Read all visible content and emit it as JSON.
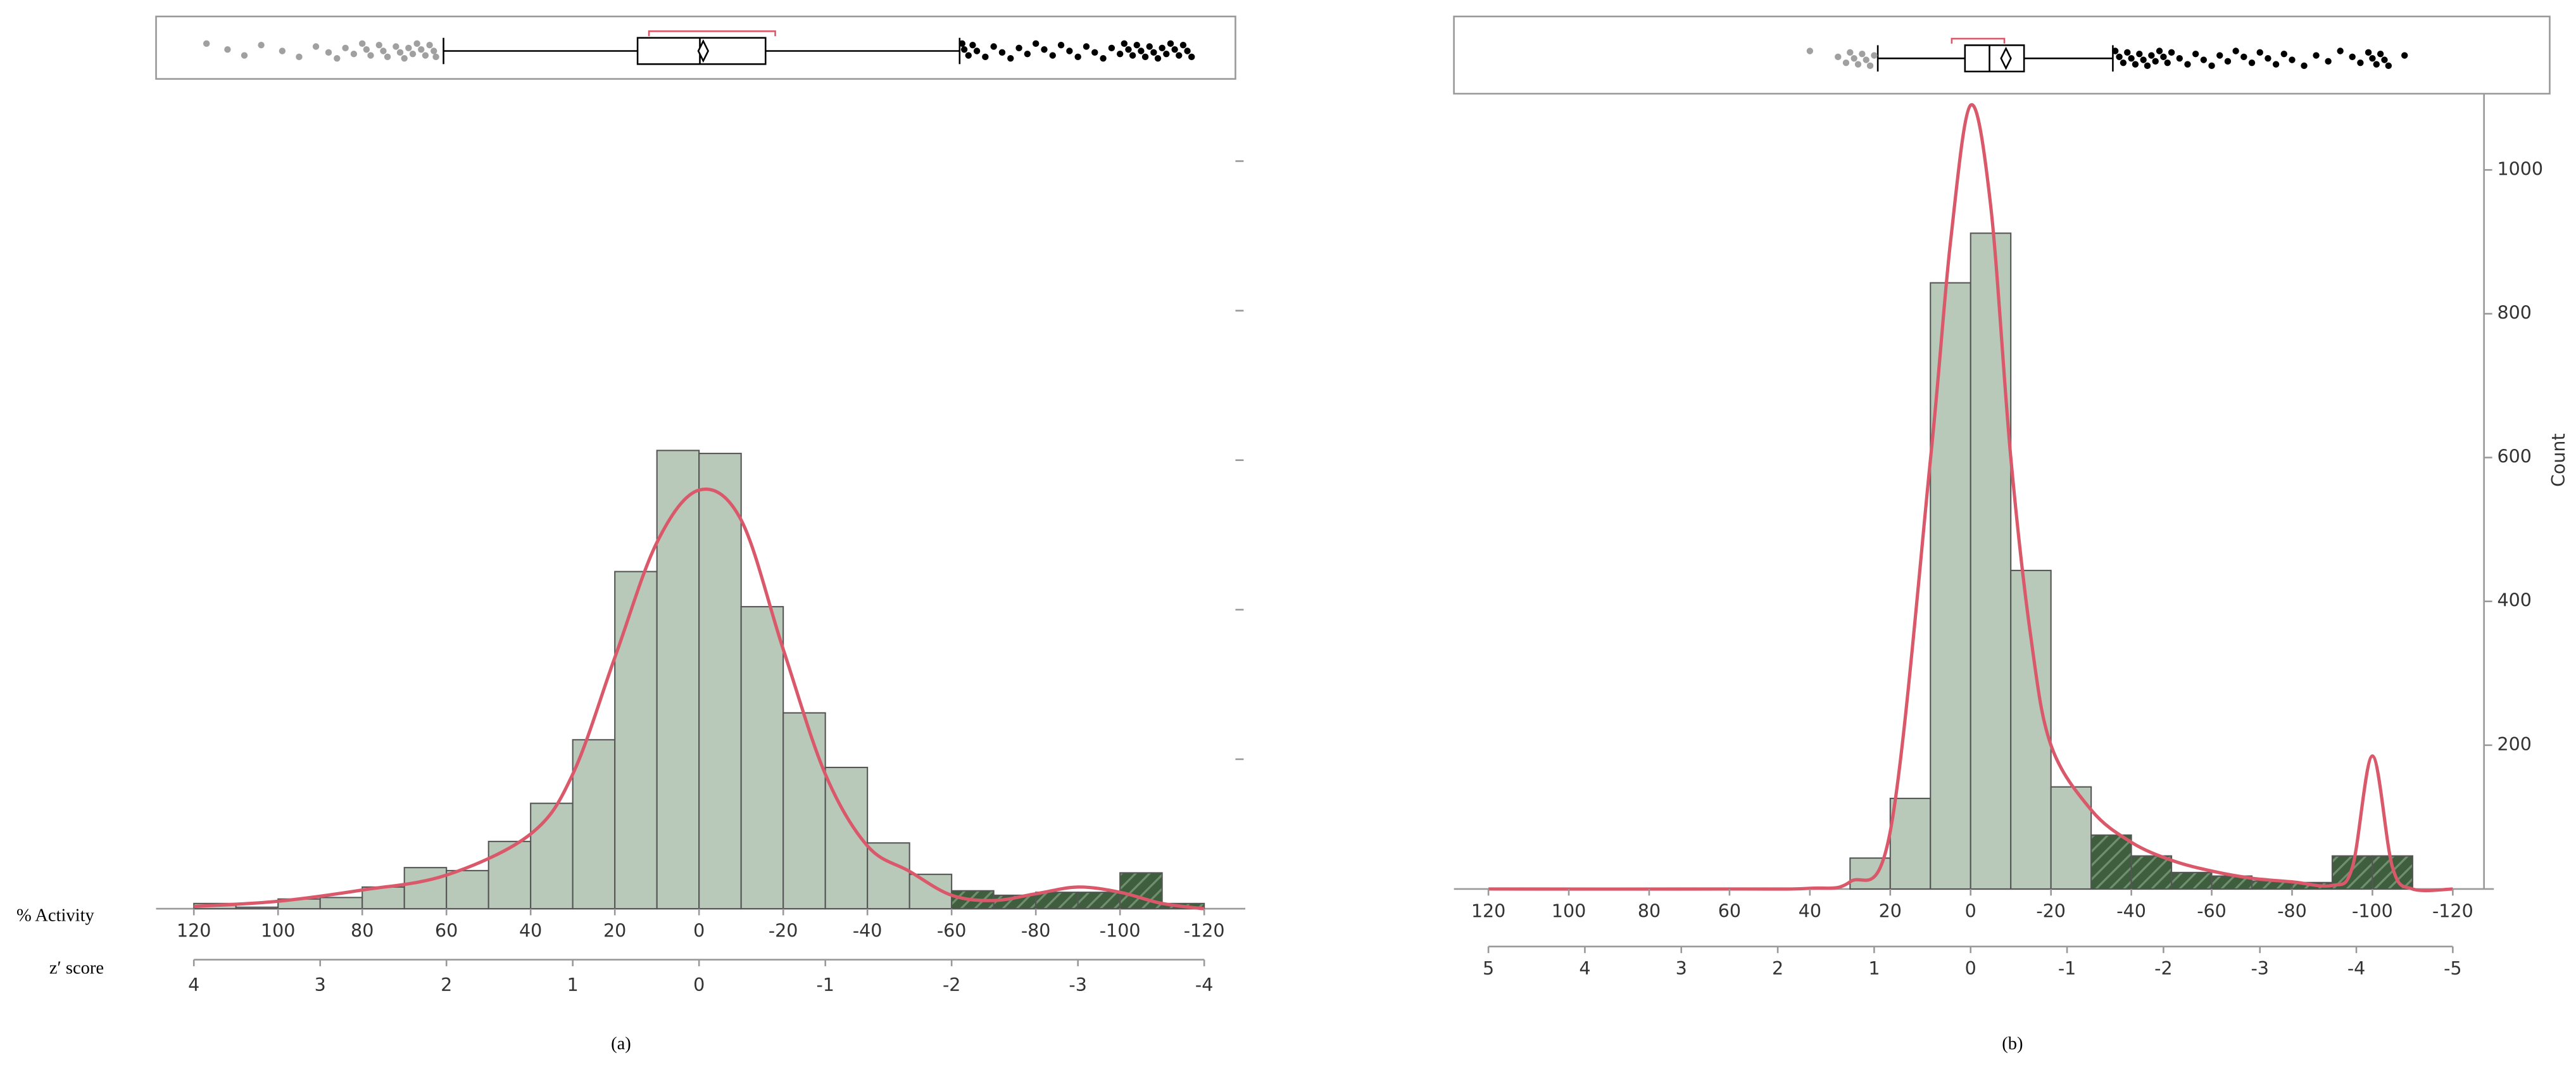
{
  "chart_data": [
    {
      "type": "histogram",
      "label": "(a)",
      "xlabel": "% Activity",
      "x2label": "z′ score",
      "xlim": [
        120,
        -120
      ],
      "xticks": [
        120,
        100,
        80,
        60,
        40,
        20,
        0,
        -20,
        -40,
        -60,
        -80,
        -100,
        -120
      ],
      "x2lim": [
        4,
        -4
      ],
      "x2ticks": [
        4,
        3,
        2,
        1,
        0,
        -1,
        -2,
        -3,
        -4
      ],
      "ylim": [
        0,
        111
      ],
      "yticks": [
        20,
        40,
        60,
        80,
        100
      ],
      "show_ytick_labels": false,
      "bins": [
        120,
        110,
        100,
        90,
        80,
        70,
        60,
        50,
        40,
        30,
        20,
        10,
        0,
        -10,
        -20,
        -30,
        -40,
        -50,
        -60,
        -70,
        -80,
        -90,
        -100,
        -110,
        -120
      ],
      "counts": [
        0.7,
        0.2,
        1.3,
        1.5,
        2.9,
        5.5,
        5.1,
        9.0,
        14.1,
        22.6,
        45.1,
        61.3,
        60.9,
        40.4,
        26.2,
        18.9,
        8.8,
        4.6,
        2.4,
        1.8,
        2.2,
        2.2,
        4.8,
        0.7
      ],
      "bar_colors": [
        "#b9c9b9",
        "#b9c9b9",
        "#b9c9b9",
        "#b9c9b9",
        "#b9c9b9",
        "#b9c9b9",
        "#b9c9b9",
        "#b9c9b9",
        "#b9c9b9",
        "#b9c9b9",
        "#b9c9b9",
        "#b9c9b9",
        "#b9c9b9",
        "#b9c9b9",
        "#b9c9b9",
        "#b9c9b9",
        "#b9c9b9",
        "#b9c9b9",
        "#3e5e3e",
        "#3e5e3e",
        "#3e5e3e",
        "#3e5e3e",
        "#3e5e3e",
        "#3e5e3e"
      ],
      "density": {
        "color": "#d9596b",
        "x": [
          120,
          100,
          80,
          60,
          40,
          30,
          20,
          10,
          0,
          -10,
          -20,
          -30,
          -40,
          -50,
          -60,
          -70,
          -80,
          -90,
          -100,
          -110,
          -120
        ],
        "values": [
          0.3,
          1.0,
          2.5,
          4.5,
          10.0,
          18.0,
          33.6,
          49.0,
          56.0,
          52.0,
          34.7,
          18.0,
          8.4,
          5.0,
          1.8,
          1.1,
          2.0,
          2.9,
          2.2,
          0.7,
          0
        ]
      },
      "box": {
        "whisker_low": -61.9,
        "q1": -15.8,
        "median": -0.2,
        "q3": 14.6,
        "whisker_high": 60.7,
        "mean": -1.0,
        "shortest_half": [
          -18.1,
          11.9
        ],
        "bracket_color": "#d9596b",
        "outliers_high": [
          117,
          112,
          108,
          104,
          99,
          95,
          91,
          88,
          86,
          84,
          82,
          80,
          79,
          78,
          76,
          75,
          74,
          72,
          71,
          70,
          69,
          68,
          67,
          66,
          65,
          64,
          63,
          62.5
        ],
        "outliers_high_color": "#a0a0a0",
        "outliers_low": [
          -62.5,
          -63,
          -64,
          -65,
          -66,
          -68,
          -70,
          -72,
          -74,
          -76,
          -78,
          -80,
          -82,
          -84,
          -86,
          -88,
          -90,
          -92,
          -94,
          -96,
          -98,
          -100,
          -101,
          -102,
          -103,
          -104,
          -105,
          -106,
          -107,
          -108,
          -109,
          -110,
          -111,
          -112,
          -113,
          -114,
          -115,
          -116,
          -117
        ],
        "outliers_low_color": "#000000"
      }
    },
    {
      "type": "histogram",
      "label": "(b)",
      "ylabel": "Count",
      "xlim": [
        120,
        -120
      ],
      "xticks": [
        120,
        100,
        80,
        60,
        40,
        20,
        0,
        -20,
        -40,
        -60,
        -80,
        -100,
        -120
      ],
      "x2lim": [
        5,
        -5
      ],
      "x2ticks": [
        5,
        4,
        3,
        2,
        1,
        0,
        -1,
        -2,
        -3,
        -4,
        -5
      ],
      "ylim": [
        0,
        1106
      ],
      "yticks": [
        200,
        400,
        600,
        800,
        1000
      ],
      "show_ytick_labels": true,
      "bins": [
        120,
        110,
        100,
        90,
        80,
        70,
        60,
        50,
        40,
        30,
        20,
        10,
        0,
        -10,
        -20,
        -30,
        -40,
        -50,
        -60,
        -70,
        -80,
        -90,
        -100,
        -110,
        -120
      ],
      "counts": [
        0,
        0,
        0,
        0,
        0,
        0,
        0,
        0,
        0,
        43,
        126,
        843,
        912,
        443,
        142,
        75,
        46,
        23,
        18,
        11,
        9,
        46,
        46,
        0
      ],
      "bar_colors": [
        "#b9c9b9",
        "#b9c9b9",
        "#b9c9b9",
        "#b9c9b9",
        "#b9c9b9",
        "#b9c9b9",
        "#b9c9b9",
        "#b9c9b9",
        "#b9c9b9",
        "#b9c9b9",
        "#b9c9b9",
        "#b9c9b9",
        "#b9c9b9",
        "#b9c9b9",
        "#b9c9b9",
        "#3e5e3e",
        "#3e5e3e",
        "#3e5e3e",
        "#3e5e3e",
        "#3e5e3e",
        "#3e5e3e",
        "#3e5e3e",
        "#3e5e3e",
        "#3e5e3e"
      ],
      "density": {
        "color": "#d9596b",
        "x": [
          120,
          60,
          40,
          30,
          20,
          10,
          5,
          0,
          -5,
          -10,
          -15,
          -20,
          -30,
          -40,
          -50,
          -60,
          -70,
          -80,
          -90,
          -95,
          -100,
          -105,
          -110,
          -120
        ],
        "values": [
          0,
          0,
          1,
          10,
          80,
          597,
          900,
          1090,
          950,
          600,
          350,
          200,
          110,
          65,
          40,
          25,
          15,
          10,
          5,
          30,
          185,
          30,
          0,
          0
        ]
      },
      "box": {
        "whisker_low": -35.4,
        "q1": -13.3,
        "median": -4.7,
        "q3": 1.4,
        "whisker_high": 23.1,
        "mean": -8.8,
        "shortest_half": [
          -8.4,
          4.7
        ],
        "bracket_color": "#d9596b",
        "outliers_high": [
          40,
          33,
          31,
          30,
          29,
          28,
          27,
          26,
          25,
          24
        ],
        "outliers_high_color": "#a0a0a0",
        "outliers_low": [
          -36,
          -37,
          -38,
          -39,
          -40,
          -41,
          -42,
          -43,
          -44,
          -45,
          -46,
          -47,
          -48,
          -49,
          -50,
          -52,
          -54,
          -56,
          -58,
          -60,
          -62,
          -64,
          -66,
          -68,
          -70,
          -72,
          -74,
          -76,
          -78,
          -80,
          -83,
          -86,
          -89,
          -92,
          -95,
          -97,
          -99,
          -100,
          -101,
          -102,
          -103,
          -104,
          -108
        ],
        "outliers_low_color": "#000000"
      }
    }
  ]
}
